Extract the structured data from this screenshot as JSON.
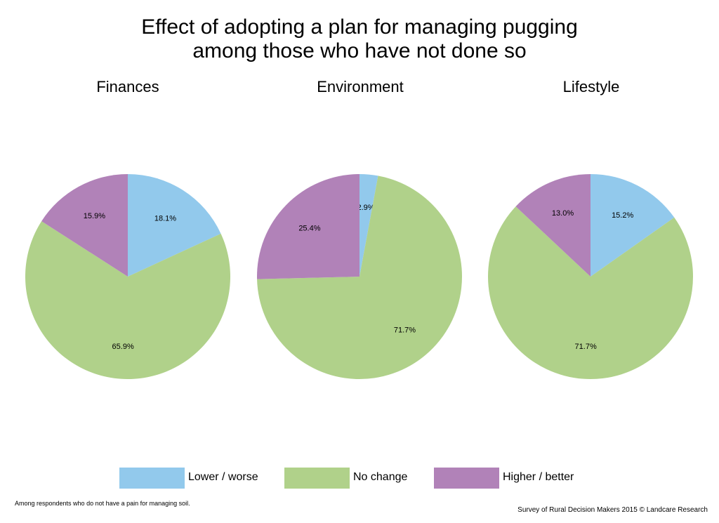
{
  "chart_data": {
    "type": "pie",
    "title_lines": [
      "Effect of adopting a plan for managing pugging",
      "among those who have not done so"
    ],
    "legend": [
      {
        "name": "Lower / worse",
        "color": "#92c9ec"
      },
      {
        "name": "No change",
        "color": "#b0d18a"
      },
      {
        "name": "Higher / better",
        "color": "#b182b8"
      }
    ],
    "legend_placement": "bottom",
    "pies": [
      {
        "title": "Finances",
        "values": [
          18.1,
          65.9,
          15.9
        ],
        "labels": [
          "18.1%",
          "65.9%",
          "15.9%"
        ]
      },
      {
        "title": "Environment",
        "values": [
          2.9,
          71.7,
          25.4
        ],
        "labels": [
          "2.9%",
          "71.7%",
          "25.4%"
        ]
      },
      {
        "title": "Lifestyle",
        "values": [
          15.2,
          71.7,
          13.0
        ],
        "labels": [
          "15.2%",
          "71.7%",
          "13.0%"
        ]
      }
    ]
  },
  "footnote": "Among respondents who do not have a pain for managing soil.",
  "source": "Survey of Rural Decision Makers 2015 © Landcare Research"
}
